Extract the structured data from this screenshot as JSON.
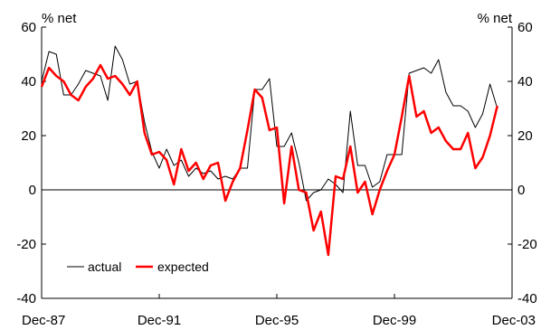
{
  "chart_data": {
    "type": "line",
    "axis_unit_left": "% net",
    "axis_unit_right": "% net",
    "x_tick_labels": [
      "Dec-87",
      "Dec-91",
      "Dec-95",
      "Dec-99",
      "Dec-03"
    ],
    "x_ticks": [
      1987.917,
      1991.917,
      1995.917,
      1999.917,
      2003.917
    ],
    "xlim": [
      1987.917,
      2003.917
    ],
    "ylim": [
      -40,
      60
    ],
    "y_ticks": [
      -40,
      -20,
      0,
      20,
      40,
      60
    ],
    "y_tick_labels": [
      "-40",
      "-20",
      "0",
      "20",
      "40",
      "60"
    ],
    "grid": false,
    "legend_position": "lower-left",
    "series": [
      {
        "name": "actual",
        "color": "#000000",
        "x": [
          1987.917,
          1988.167,
          1988.417,
          1988.667,
          1988.917,
          1989.167,
          1989.417,
          1989.667,
          1989.917,
          1990.167,
          1990.417,
          1990.667,
          1990.917,
          1991.167,
          1991.417,
          1991.667,
          1991.917,
          1992.167,
          1992.417,
          1992.667,
          1992.917,
          1993.167,
          1993.417,
          1993.667,
          1993.917,
          1994.167,
          1994.417,
          1994.667,
          1994.917,
          1995.167,
          1995.417,
          1995.667,
          1995.917,
          1996.167,
          1996.417,
          1996.667,
          1996.917,
          1997.167,
          1997.417,
          1997.667,
          1997.917,
          1998.167,
          1998.417,
          1998.667,
          1998.917,
          1999.167,
          1999.417,
          1999.667,
          1999.917,
          2000.167,
          2000.417,
          2000.667,
          2000.917,
          2001.167,
          2001.417,
          2001.667,
          2001.917,
          2002.167,
          2002.417,
          2002.667,
          2002.917,
          2003.167,
          2003.417
        ],
        "y": [
          40,
          51,
          50,
          35,
          35,
          39,
          44,
          43,
          42,
          33,
          53,
          48,
          39,
          40,
          25,
          14,
          8,
          15,
          9,
          11,
          5,
          8,
          6,
          7,
          4,
          5,
          4,
          8,
          8,
          37,
          37,
          41,
          16,
          16,
          21,
          10,
          -4,
          -1,
          0,
          4,
          2,
          -1,
          29,
          9,
          9,
          1,
          3,
          13,
          13,
          13,
          43,
          44,
          45,
          43,
          48,
          36,
          31,
          31,
          29,
          23,
          28,
          39,
          30
        ]
      },
      {
        "name": "expected",
        "color": "#ff0000",
        "x": [
          1987.917,
          1988.167,
          1988.417,
          1988.667,
          1988.917,
          1989.167,
          1989.417,
          1989.667,
          1989.917,
          1990.167,
          1990.417,
          1990.667,
          1990.917,
          1991.167,
          1991.417,
          1991.667,
          1991.917,
          1992.167,
          1992.417,
          1992.667,
          1992.917,
          1993.167,
          1993.417,
          1993.667,
          1993.917,
          1994.167,
          1994.417,
          1994.667,
          1994.917,
          1995.167,
          1995.417,
          1995.667,
          1995.917,
          1996.167,
          1996.417,
          1996.667,
          1996.917,
          1997.167,
          1997.417,
          1997.667,
          1997.917,
          1998.167,
          1998.417,
          1998.667,
          1998.917,
          1999.167,
          1999.417,
          1999.667,
          1999.917,
          2000.167,
          2000.417,
          2000.667,
          2000.917,
          2001.167,
          2001.417,
          2001.667,
          2001.917,
          2002.167,
          2002.417,
          2002.667,
          2002.917,
          2003.167,
          2003.417
        ],
        "y": [
          38,
          45,
          42,
          40,
          35,
          33,
          38,
          41,
          46,
          41,
          42,
          39,
          35,
          40,
          21,
          13,
          14,
          11,
          2,
          15,
          7,
          10,
          4,
          9,
          10,
          -4,
          3,
          8,
          22,
          37,
          34,
          22,
          23,
          -5,
          16,
          0,
          -1,
          -15,
          -8,
          -24,
          5,
          4,
          16,
          -1,
          3,
          -9,
          0,
          7,
          13,
          27,
          42,
          27,
          29,
          21,
          23,
          18,
          15,
          15,
          21,
          8,
          12,
          20,
          31
        ]
      }
    ]
  }
}
